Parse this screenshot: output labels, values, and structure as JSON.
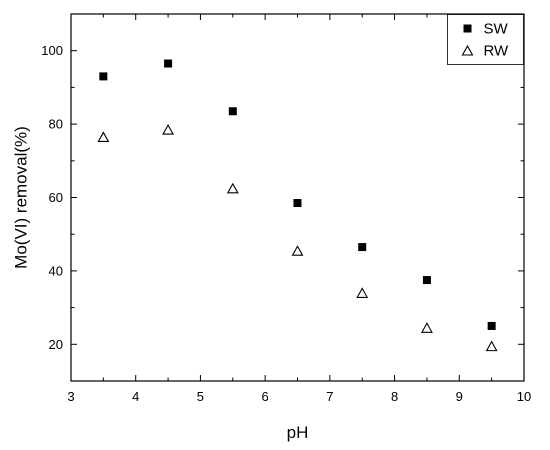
{
  "chart_data": {
    "type": "scatter",
    "title": "",
    "xlabel": "pH",
    "ylabel": "Mo(VI) removal(%)",
    "xlim": [
      3,
      10
    ],
    "ylim": [
      10,
      110
    ],
    "xticks": [
      3,
      4,
      5,
      6,
      7,
      8,
      9,
      10
    ],
    "yticks": [
      20,
      40,
      60,
      80,
      100
    ],
    "grid": false,
    "legend_position": "top-right",
    "x": [
      3.5,
      4.5,
      5.5,
      6.5,
      7.5,
      8.5,
      9.5
    ],
    "series": [
      {
        "name": "SW",
        "marker": "filled-square",
        "color": "#000000",
        "values": [
          93,
          96.5,
          83.5,
          58.5,
          46.5,
          37.5,
          25
        ]
      },
      {
        "name": "RW",
        "marker": "open-triangle",
        "color": "#000000",
        "values": [
          76.5,
          78.5,
          62.5,
          45.5,
          34,
          24.5,
          19.5
        ]
      }
    ]
  }
}
